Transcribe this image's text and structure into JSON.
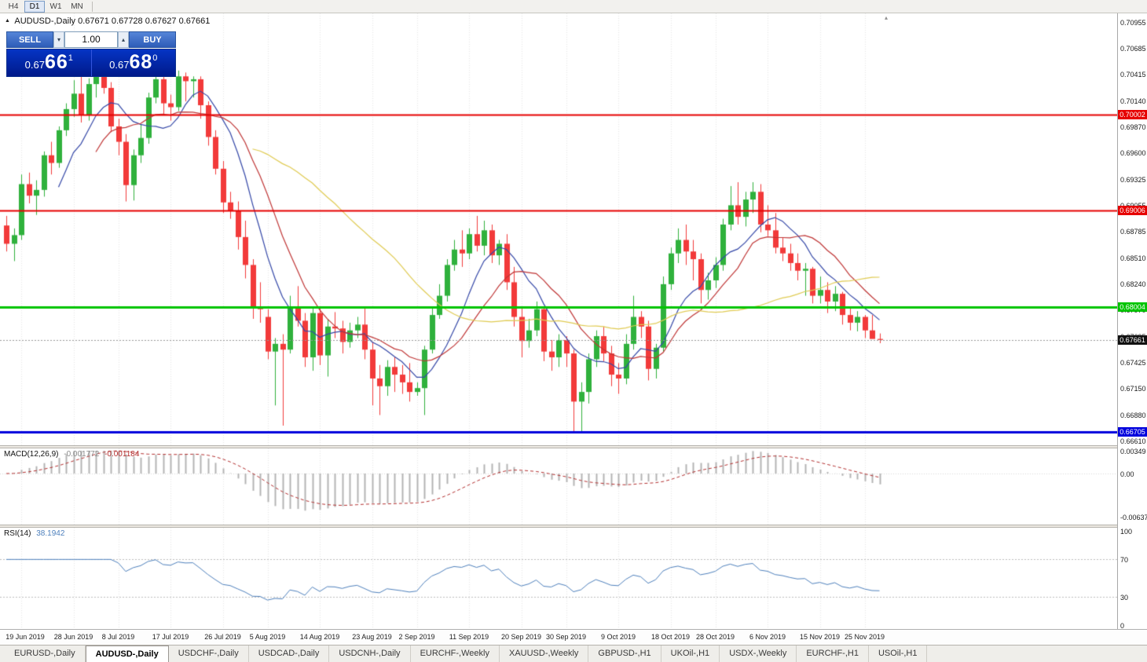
{
  "toolbar": {
    "timeframes": [
      {
        "label": "H4",
        "active": false
      },
      {
        "label": "D1",
        "active": true
      },
      {
        "label": "W1",
        "active": false
      },
      {
        "label": "MN",
        "active": false
      }
    ]
  },
  "icons": {
    "symbol_marker": "▲",
    "spinner_up": "▴",
    "spinner_down": "▾",
    "shift_marker": "▴"
  },
  "chart": {
    "symbol": "AUDUSD-,Daily",
    "open": "0.67671",
    "high": "0.67728",
    "low": "0.67627",
    "close": "0.67661"
  },
  "one_click": {
    "sell_label": "SELL",
    "buy_label": "BUY",
    "volume": "1.00",
    "sell_price": {
      "small": "0.67",
      "big": "66",
      "sup": "1"
    },
    "buy_price": {
      "small": "0.67",
      "big": "68",
      "sup": "0"
    }
  },
  "price_axis": {
    "ticks": [
      "0.70955",
      "0.70685",
      "0.70415",
      "0.70140",
      "0.69870",
      "0.69600",
      "0.69325",
      "0.69055",
      "0.68785",
      "0.68510",
      "0.68240",
      "0.67970",
      "0.67695",
      "0.67425",
      "0.67150",
      "0.66880",
      "0.66610"
    ]
  },
  "colors": {
    "bull": "#2fb13c",
    "bear": "#f23a3a",
    "grid": "#e7e7e7",
    "macd_hist": "#b4b4b4",
    "macd_signal": "#b43030",
    "rsi_line": "#4f81bd",
    "current_price_line": "#9a9a9a"
  },
  "tabs": [
    {
      "label": "EURUSD-,Daily",
      "active": false
    },
    {
      "label": "AUDUSD-,Daily",
      "active": true
    },
    {
      "label": "USDCHF-,Daily",
      "active": false
    },
    {
      "label": "USDCAD-,Daily",
      "active": false
    },
    {
      "label": "USDCNH-,Daily",
      "active": false
    },
    {
      "label": "EURCHF-,Weekly",
      "active": false
    },
    {
      "label": "XAUUSD-,Weekly",
      "active": false
    },
    {
      "label": "GBPUSD-,H1",
      "active": false
    },
    {
      "label": "UKOil-,H1",
      "active": false
    },
    {
      "label": "USDX-,Weekly",
      "active": false
    },
    {
      "label": "EURCHF-,H1",
      "active": false
    },
    {
      "label": "USOil-,H1",
      "active": false
    }
  ],
  "chart_data": {
    "type": "candlestick",
    "title": "AUDUSD-,Daily",
    "symbol": "AUDUSD",
    "timeframe": "Daily",
    "y_range": {
      "min": 0.66566,
      "max": 0.71055
    },
    "candles": [
      [
        0.6885,
        0.6895,
        0.6858,
        0.6866
      ],
      [
        0.6866,
        0.6882,
        0.6848,
        0.6875
      ],
      [
        0.6875,
        0.6938,
        0.687,
        0.6928
      ],
      [
        0.6928,
        0.694,
        0.6908,
        0.6916
      ],
      [
        0.6916,
        0.6932,
        0.6896,
        0.6922
      ],
      [
        0.6922,
        0.6962,
        0.6915,
        0.6958
      ],
      [
        0.6958,
        0.6972,
        0.6938,
        0.695
      ],
      [
        0.695,
        0.6988,
        0.6945,
        0.6984
      ],
      [
        0.6984,
        0.7012,
        0.6978,
        0.7006
      ],
      [
        0.7006,
        0.7036,
        0.6998,
        0.7022
      ],
      [
        0.7022,
        0.704,
        0.6992,
        0.7
      ],
      [
        0.7,
        0.7038,
        0.6994,
        0.7032
      ],
      [
        0.7032,
        0.7046,
        0.7018,
        0.704
      ],
      [
        0.704,
        0.7047,
        0.7022,
        0.7028
      ],
      [
        0.7028,
        0.7034,
        0.6982,
        0.6988
      ],
      [
        0.6988,
        0.6996,
        0.6958,
        0.6972
      ],
      [
        0.6972,
        0.698,
        0.691,
        0.6927
      ],
      [
        0.6927,
        0.6964,
        0.6911,
        0.6958
      ],
      [
        0.6958,
        0.699,
        0.695,
        0.6976
      ],
      [
        0.6976,
        0.7023,
        0.697,
        0.7018
      ],
      [
        0.7018,
        0.7044,
        0.7012,
        0.7037
      ],
      [
        0.7037,
        0.7042,
        0.7,
        0.7012
      ],
      [
        0.7012,
        0.7021,
        0.6994,
        0.7008
      ],
      [
        0.7008,
        0.7046,
        0.7004,
        0.704
      ],
      [
        0.704,
        0.7044,
        0.7014,
        0.7035
      ],
      [
        0.7035,
        0.704,
        0.7018,
        0.7037
      ],
      [
        0.7037,
        0.704,
        0.6996,
        0.701
      ],
      [
        0.701,
        0.7014,
        0.6968,
        0.6977
      ],
      [
        0.6977,
        0.6984,
        0.6938,
        0.6944
      ],
      [
        0.6944,
        0.6952,
        0.6898,
        0.6909
      ],
      [
        0.6909,
        0.692,
        0.6892,
        0.69
      ],
      [
        0.69,
        0.691,
        0.686,
        0.6873
      ],
      [
        0.6873,
        0.689,
        0.683,
        0.6844
      ],
      [
        0.6844,
        0.685,
        0.6788,
        0.68
      ],
      [
        0.68,
        0.6826,
        0.6784,
        0.6798
      ],
      [
        0.679,
        0.6798,
        0.6746,
        0.6754
      ],
      [
        0.6754,
        0.6768,
        0.6698,
        0.6762
      ],
      [
        0.6762,
        0.6772,
        0.6677,
        0.6756
      ],
      [
        0.6756,
        0.6812,
        0.6752,
        0.68
      ],
      [
        0.68,
        0.6822,
        0.678,
        0.6786
      ],
      [
        0.6786,
        0.6794,
        0.6738,
        0.6748
      ],
      [
        0.6748,
        0.68,
        0.6734,
        0.6794
      ],
      [
        0.6794,
        0.68,
        0.674,
        0.675
      ],
      [
        0.675,
        0.6788,
        0.6728,
        0.678
      ],
      [
        0.678,
        0.6795,
        0.6768,
        0.6778
      ],
      [
        0.6778,
        0.6786,
        0.6752,
        0.6764
      ],
      [
        0.6764,
        0.6784,
        0.6758,
        0.6776
      ],
      [
        0.6776,
        0.679,
        0.6768,
        0.6782
      ],
      [
        0.6782,
        0.68,
        0.6746,
        0.6756
      ],
      [
        0.6756,
        0.6764,
        0.6698,
        0.6726
      ],
      [
        0.6726,
        0.674,
        0.6688,
        0.6718
      ],
      [
        0.6718,
        0.6745,
        0.6708,
        0.6738
      ],
      [
        0.6738,
        0.6748,
        0.6712,
        0.673
      ],
      [
        0.673,
        0.674,
        0.671,
        0.6722
      ],
      [
        0.6722,
        0.6742,
        0.6702,
        0.6712
      ],
      [
        0.6712,
        0.6722,
        0.6708,
        0.6716
      ],
      [
        0.6716,
        0.676,
        0.6688,
        0.6756
      ],
      [
        0.6756,
        0.68,
        0.6752,
        0.6792
      ],
      [
        0.6792,
        0.6824,
        0.6788,
        0.6812
      ],
      [
        0.6812,
        0.685,
        0.6806,
        0.6844
      ],
      [
        0.6844,
        0.687,
        0.6838,
        0.686
      ],
      [
        0.686,
        0.688,
        0.6842,
        0.6856
      ],
      [
        0.6856,
        0.6882,
        0.685,
        0.6876
      ],
      [
        0.6876,
        0.6895,
        0.6858,
        0.6864
      ],
      [
        0.6864,
        0.689,
        0.6854,
        0.688
      ],
      [
        0.688,
        0.6886,
        0.6846,
        0.6854
      ],
      [
        0.6854,
        0.687,
        0.6844,
        0.6866
      ],
      [
        0.6866,
        0.6876,
        0.6818,
        0.6826
      ],
      [
        0.6826,
        0.6842,
        0.678,
        0.679
      ],
      [
        0.679,
        0.68,
        0.6748,
        0.6765
      ],
      [
        0.6765,
        0.6788,
        0.6758,
        0.6776
      ],
      [
        0.6776,
        0.6806,
        0.677,
        0.6798
      ],
      [
        0.6798,
        0.68,
        0.6744,
        0.6754
      ],
      [
        0.6754,
        0.6766,
        0.6734,
        0.6748
      ],
      [
        0.6748,
        0.6772,
        0.6738,
        0.6766
      ],
      [
        0.6766,
        0.677,
        0.6738,
        0.6752
      ],
      [
        0.6752,
        0.6756,
        0.667,
        0.6702
      ],
      [
        0.6702,
        0.6722,
        0.667,
        0.6712
      ],
      [
        0.6712,
        0.6752,
        0.67,
        0.6746
      ],
      [
        0.6746,
        0.6776,
        0.6738,
        0.677
      ],
      [
        0.677,
        0.678,
        0.6744,
        0.6752
      ],
      [
        0.6752,
        0.676,
        0.6718,
        0.673
      ],
      [
        0.673,
        0.6742,
        0.671,
        0.6726
      ],
      [
        0.6726,
        0.6772,
        0.672,
        0.6762
      ],
      [
        0.6762,
        0.6812,
        0.6756,
        0.679
      ],
      [
        0.679,
        0.6796,
        0.6768,
        0.678
      ],
      [
        0.678,
        0.6786,
        0.6724,
        0.6736
      ],
      [
        0.6736,
        0.6762,
        0.6726,
        0.6758
      ],
      [
        0.6758,
        0.6832,
        0.6754,
        0.6824
      ],
      [
        0.6824,
        0.6862,
        0.6818,
        0.6856
      ],
      [
        0.6856,
        0.6882,
        0.6846,
        0.687
      ],
      [
        0.687,
        0.6886,
        0.6844,
        0.6858
      ],
      [
        0.6858,
        0.687,
        0.6828,
        0.685
      ],
      [
        0.685,
        0.6856,
        0.6804,
        0.6818
      ],
      [
        0.6818,
        0.6836,
        0.6808,
        0.6828
      ],
      [
        0.6828,
        0.6852,
        0.682,
        0.6844
      ],
      [
        0.6844,
        0.6892,
        0.6838,
        0.6886
      ],
      [
        0.6886,
        0.6926,
        0.688,
        0.6906
      ],
      [
        0.6906,
        0.693,
        0.6886,
        0.6894
      ],
      [
        0.6894,
        0.692,
        0.6884,
        0.6912
      ],
      [
        0.6912,
        0.693,
        0.6898,
        0.692
      ],
      [
        0.692,
        0.6928,
        0.6878,
        0.6886
      ],
      [
        0.6886,
        0.6906,
        0.6874,
        0.688
      ],
      [
        0.688,
        0.6898,
        0.6856,
        0.6862
      ],
      [
        0.6862,
        0.6872,
        0.6848,
        0.6856
      ],
      [
        0.6856,
        0.6866,
        0.6838,
        0.6846
      ],
      [
        0.6846,
        0.6856,
        0.6828,
        0.6838
      ],
      [
        0.6838,
        0.6846,
        0.6812,
        0.684
      ],
      [
        0.684,
        0.6842,
        0.6804,
        0.6812
      ],
      [
        0.6812,
        0.6832,
        0.6804,
        0.6818
      ],
      [
        0.6818,
        0.6826,
        0.6794,
        0.6806
      ],
      [
        0.6806,
        0.6822,
        0.6796,
        0.6814
      ],
      [
        0.6814,
        0.6816,
        0.6782,
        0.6792
      ],
      [
        0.6792,
        0.68,
        0.6776,
        0.6784
      ],
      [
        0.6784,
        0.6796,
        0.6775,
        0.679
      ],
      [
        0.679,
        0.6792,
        0.6768,
        0.6776
      ],
      [
        0.6776,
        0.6792,
        0.6769,
        0.67671
      ],
      [
        0.67671,
        0.67728,
        0.67627,
        0.67661
      ]
    ],
    "x_labels": [
      {
        "i": 2,
        "label": "19 Jun 2019"
      },
      {
        "i": 9,
        "label": "28 Jun 2019"
      },
      {
        "i": 15,
        "label": "8 Jul 2019"
      },
      {
        "i": 22,
        "label": "17 Jul 2019"
      },
      {
        "i": 29,
        "label": "26 Jul 2019"
      },
      {
        "i": 35,
        "label": "5 Aug 2019"
      },
      {
        "i": 42,
        "label": "14 Aug 2019"
      },
      {
        "i": 49,
        "label": "23 Aug 2019"
      },
      {
        "i": 55,
        "label": "2 Sep 2019"
      },
      {
        "i": 62,
        "label": "11 Sep 2019"
      },
      {
        "i": 69,
        "label": "20 Sep 2019"
      },
      {
        "i": 75,
        "label": "30 Sep 2019"
      },
      {
        "i": 82,
        "label": "9 Oct 2019"
      },
      {
        "i": 89,
        "label": "18 Oct 2019"
      },
      {
        "i": 95,
        "label": "28 Oct 2019"
      },
      {
        "i": 102,
        "label": "6 Nov 2019"
      },
      {
        "i": 109,
        "label": "15 Nov 2019"
      },
      {
        "i": 115,
        "label": "25 Nov 2019"
      }
    ],
    "moving_averages": [
      {
        "period": 8,
        "color": "#3548a8"
      },
      {
        "period": 13,
        "color": "#c03636"
      },
      {
        "period": 34,
        "color": "#e0cb52"
      }
    ],
    "horizontal_lines": [
      {
        "price": 0.70002,
        "label": "0.70002",
        "color": "#e60000",
        "width": 2
      },
      {
        "price": 0.69006,
        "label": "0.69006",
        "color": "#e60000",
        "width": 2
      },
      {
        "price": 0.68004,
        "label": "0.68004",
        "color": "#00c400",
        "width": 3
      },
      {
        "price": 0.66705,
        "label": "0.66705",
        "color": "#0000dd",
        "width": 3
      }
    ],
    "current_price": {
      "value": 0.67661,
      "label": "0.67661"
    },
    "indicators": [
      {
        "type": "MACD",
        "display": "MACD(12,26,9)",
        "values": [
          "-0.001772",
          "-0.001184"
        ],
        "axis": [
          "0.00349",
          "0.00",
          "-0.00637"
        ]
      },
      {
        "type": "RSI",
        "display": "RSI(14)",
        "value": "38.1942",
        "axis": [
          "100",
          "70",
          "30",
          "0"
        ],
        "levels": [
          70,
          30
        ]
      }
    ]
  }
}
